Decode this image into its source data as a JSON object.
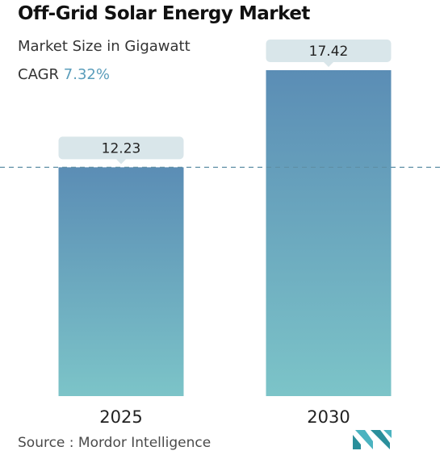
{
  "header": {
    "title": "Off-Grid Solar Energy Market",
    "subtitle": "Market Size in Gigawatt",
    "cagr_label": "CAGR",
    "cagr_value": "7.32%"
  },
  "chart_data": {
    "type": "bar",
    "categories": [
      "2025",
      "2030"
    ],
    "values": [
      12.23,
      17.42
    ],
    "value_labels": [
      "12.23",
      "17.42"
    ],
    "ylim": [
      0,
      17.42
    ],
    "reference_line": {
      "value": 12.23,
      "style": "dashed"
    },
    "grid": false,
    "colors": {
      "bar_top": "#5b8db5",
      "bar_bottom": "#7cc4c8",
      "label_bg": "#d9e6ea",
      "dashed_line": "#5f8fa6"
    }
  },
  "footer": {
    "source": "Source :  Mordor Intelligence",
    "logo_icon": "mordor-intelligence-logo-icon"
  }
}
